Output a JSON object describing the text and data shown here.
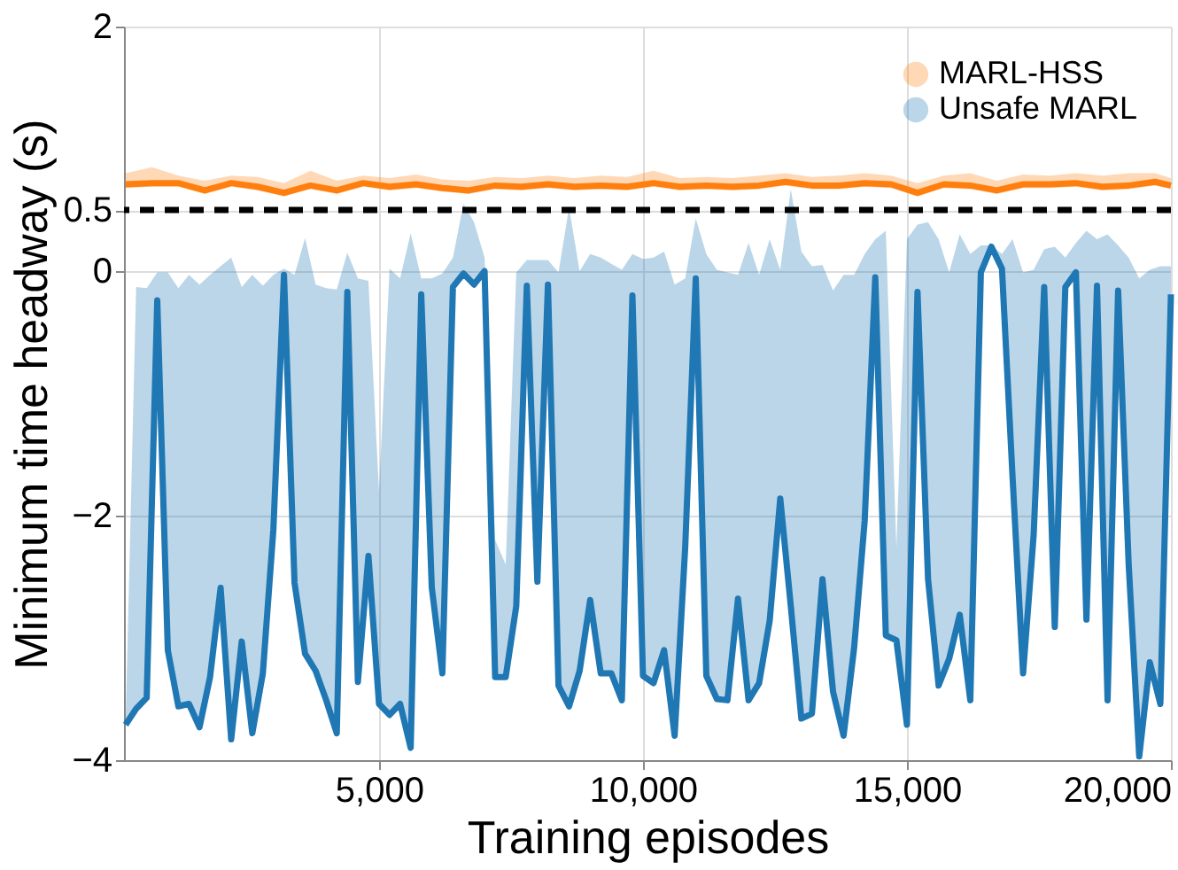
{
  "chart_data": {
    "type": "line",
    "xlabel": "Training episodes",
    "ylabel": "Minimum time headway (s)",
    "xlim": [
      170,
      20000
    ],
    "xticks": [
      {
        "value": 5000,
        "label": "5,000"
      },
      {
        "value": 10000,
        "label": "10,000"
      },
      {
        "value": 15000,
        "label": "15,000"
      },
      {
        "value": 20000,
        "label": "20,000"
      }
    ],
    "ylim": [
      -4,
      2
    ],
    "yticks": [
      -4,
      -2,
      0,
      0.5,
      2
    ],
    "grid": true,
    "legend": "top right",
    "ref_lines": [
      {
        "axis": "y",
        "value": 0.5,
        "color": "#000000",
        "line_style": "dashed"
      }
    ],
    "series": [
      {
        "name": "MARL-HSS",
        "color": "#ff7f0e",
        "x": [
          200,
          700,
          1200,
          1700,
          2200,
          2700,
          3200,
          3700,
          4200,
          4700,
          5200,
          5700,
          6200,
          6700,
          7200,
          7700,
          8200,
          8700,
          9200,
          9700,
          10200,
          10700,
          11200,
          11700,
          12200,
          12700,
          13200,
          13700,
          14200,
          14700,
          15200,
          15700,
          16200,
          16700,
          17200,
          17700,
          18200,
          18700,
          19200,
          19700,
          20000
        ],
        "values": [
          0.71,
          0.72,
          0.72,
          0.66,
          0.72,
          0.69,
          0.64,
          0.7,
          0.66,
          0.72,
          0.69,
          0.71,
          0.68,
          0.66,
          0.7,
          0.69,
          0.71,
          0.69,
          0.7,
          0.69,
          0.72,
          0.69,
          0.7,
          0.69,
          0.7,
          0.73,
          0.7,
          0.7,
          0.72,
          0.71,
          0.64,
          0.71,
          0.7,
          0.66,
          0.71,
          0.71,
          0.72,
          0.69,
          0.7,
          0.73,
          0.7
        ],
        "lower": [
          0.68,
          0.69,
          0.69,
          0.63,
          0.69,
          0.66,
          0.61,
          0.67,
          0.63,
          0.69,
          0.66,
          0.68,
          0.65,
          0.63,
          0.67,
          0.66,
          0.68,
          0.66,
          0.67,
          0.66,
          0.69,
          0.66,
          0.67,
          0.66,
          0.67,
          0.7,
          0.67,
          0.67,
          0.69,
          0.68,
          0.61,
          0.68,
          0.67,
          0.63,
          0.68,
          0.68,
          0.69,
          0.66,
          0.67,
          0.7,
          0.67
        ],
        "upper": [
          0.8,
          0.85,
          0.78,
          0.74,
          0.78,
          0.77,
          0.72,
          0.82,
          0.74,
          0.78,
          0.76,
          0.79,
          0.75,
          0.74,
          0.77,
          0.76,
          0.78,
          0.76,
          0.78,
          0.77,
          0.82,
          0.76,
          0.77,
          0.76,
          0.78,
          0.8,
          0.77,
          0.78,
          0.8,
          0.78,
          0.72,
          0.78,
          0.8,
          0.74,
          0.79,
          0.78,
          0.8,
          0.78,
          0.8,
          0.8,
          0.76
        ]
      },
      {
        "name": "Unsafe MARL",
        "color": "#1f77b4",
        "x": [
          200,
          400,
          600,
          800,
          1000,
          1200,
          1400,
          1600,
          1800,
          2000,
          2200,
          2400,
          2600,
          2800,
          3000,
          3200,
          3400,
          3600,
          3800,
          4000,
          4200,
          4400,
          4600,
          4800,
          5000,
          5200,
          5400,
          5600,
          5800,
          6000,
          6200,
          6400,
          6600,
          6800,
          7000,
          7200,
          7400,
          7600,
          7800,
          8000,
          8200,
          8400,
          8600,
          8800,
          9000,
          9200,
          9400,
          9600,
          9800,
          10000,
          10200,
          10400,
          10600,
          10800,
          11000,
          11200,
          11400,
          11600,
          11800,
          12000,
          12200,
          12400,
          12600,
          12800,
          13000,
          13200,
          13400,
          13600,
          13800,
          14000,
          14200,
          14400,
          14600,
          14800,
          15000,
          15200,
          15400,
          15600,
          15800,
          16000,
          16200,
          16400,
          16600,
          16800,
          17000,
          17200,
          17400,
          17600,
          17800,
          18000,
          18200,
          18400,
          18600,
          18800,
          19000,
          19200,
          19400,
          19600,
          19800,
          20000
        ],
        "values": [
          -3.71,
          -3.58,
          -3.49,
          -0.24,
          -3.1,
          -3.56,
          -3.54,
          -3.73,
          -3.32,
          -2.59,
          -3.83,
          -3.03,
          -3.78,
          -3.29,
          -2.11,
          -0.03,
          -2.55,
          -3.13,
          -3.27,
          -3.51,
          -3.78,
          -0.17,
          -3.36,
          -2.33,
          -3.54,
          -3.63,
          -3.54,
          -3.9,
          -0.19,
          -2.59,
          -3.29,
          -0.13,
          -0.02,
          -0.11,
          0.0,
          -3.32,
          -3.32,
          -2.74,
          -0.12,
          -2.54,
          -0.11,
          -3.39,
          -3.56,
          -3.27,
          -2.69,
          -3.29,
          -3.29,
          -3.51,
          -0.2,
          -3.31,
          -3.37,
          -3.1,
          -3.8,
          -2.26,
          -0.06,
          -3.31,
          -3.5,
          -3.51,
          -2.68,
          -3.51,
          -3.37,
          -2.86,
          -1.86,
          -2.74,
          -3.66,
          -3.62,
          -2.52,
          -3.44,
          -3.8,
          -3.08,
          -2.04,
          -0.05,
          -2.98,
          -3.02,
          -3.71,
          -0.17,
          -2.52,
          -3.39,
          -3.17,
          -2.81,
          -3.51,
          -0.01,
          0.2,
          0.02,
          -1.68,
          -3.29,
          -2.16,
          -0.13,
          -2.91,
          -0.13,
          -0.01,
          -2.85,
          -0.12,
          -3.51,
          -0.16,
          -2.4,
          -3.97,
          -3.2,
          -3.54,
          -0.19
        ],
        "lower": [
          -3.71,
          -3.58,
          -3.49,
          -0.24,
          -3.1,
          -3.56,
          -3.54,
          -3.73,
          -3.32,
          -2.59,
          -3.83,
          -3.03,
          -3.78,
          -3.29,
          -2.11,
          -0.03,
          -2.55,
          -3.13,
          -3.27,
          -3.51,
          -3.78,
          -0.17,
          -3.36,
          -2.33,
          -3.54,
          -3.63,
          -3.54,
          -3.9,
          -0.19,
          -2.59,
          -3.29,
          -0.13,
          -0.02,
          -0.11,
          0.0,
          -3.32,
          -3.32,
          -2.74,
          -0.12,
          -2.54,
          -0.11,
          -3.39,
          -3.56,
          -3.27,
          -2.69,
          -3.29,
          -3.29,
          -3.51,
          -0.2,
          -3.31,
          -3.37,
          -3.1,
          -3.8,
          -2.26,
          -0.06,
          -3.31,
          -3.5,
          -3.51,
          -2.68,
          -3.51,
          -3.37,
          -2.86,
          -1.86,
          -2.74,
          -3.66,
          -3.62,
          -2.52,
          -3.44,
          -3.8,
          -3.08,
          -2.04,
          -0.05,
          -2.98,
          -3.02,
          -3.71,
          -0.17,
          -2.52,
          -3.39,
          -3.17,
          -2.81,
          -3.51,
          -0.01,
          0.2,
          0.02,
          -1.68,
          -3.29,
          -2.16,
          -0.13,
          -2.91,
          -0.13,
          -0.01,
          -2.85,
          -0.12,
          -3.51,
          -0.16,
          -2.4,
          -3.97,
          -3.2,
          -3.54,
          -0.19
        ],
        "upper": [
          -3.71,
          -0.13,
          -0.14,
          -0.01,
          -0.01,
          -0.14,
          -0.03,
          -0.11,
          -0.03,
          0.04,
          0.11,
          -0.13,
          -0.03,
          -0.12,
          -0.03,
          0.02,
          -0.03,
          0.27,
          -0.11,
          -0.14,
          -0.15,
          0.15,
          -0.06,
          -0.08,
          -1.8,
          0.02,
          -0.06,
          0.31,
          -0.06,
          -0.06,
          -0.02,
          0.11,
          0.55,
          0.4,
          0.11,
          -2.2,
          -2.4,
          -0.01,
          0.09,
          0.09,
          0.09,
          -0.01,
          0.52,
          0.0,
          0.14,
          0.11,
          0.06,
          0.01,
          0.14,
          0.1,
          0.11,
          0.16,
          -0.11,
          -0.06,
          0.43,
          0.14,
          0.01,
          -0.01,
          -0.03,
          0.23,
          -0.03,
          0.26,
          0.01,
          0.67,
          0.16,
          0.04,
          0.05,
          -0.16,
          -0.03,
          -0.03,
          0.14,
          0.26,
          0.33,
          -2.26,
          0.26,
          0.38,
          0.4,
          0.26,
          -0.01,
          0.3,
          0.14,
          0.21,
          0.21,
          0.14,
          0.26,
          -0.01,
          0.01,
          0.18,
          0.2,
          0.11,
          0.23,
          0.33,
          0.26,
          0.3,
          0.21,
          0.11,
          -0.06,
          0.01,
          0.04,
          0.04
        ]
      }
    ]
  }
}
